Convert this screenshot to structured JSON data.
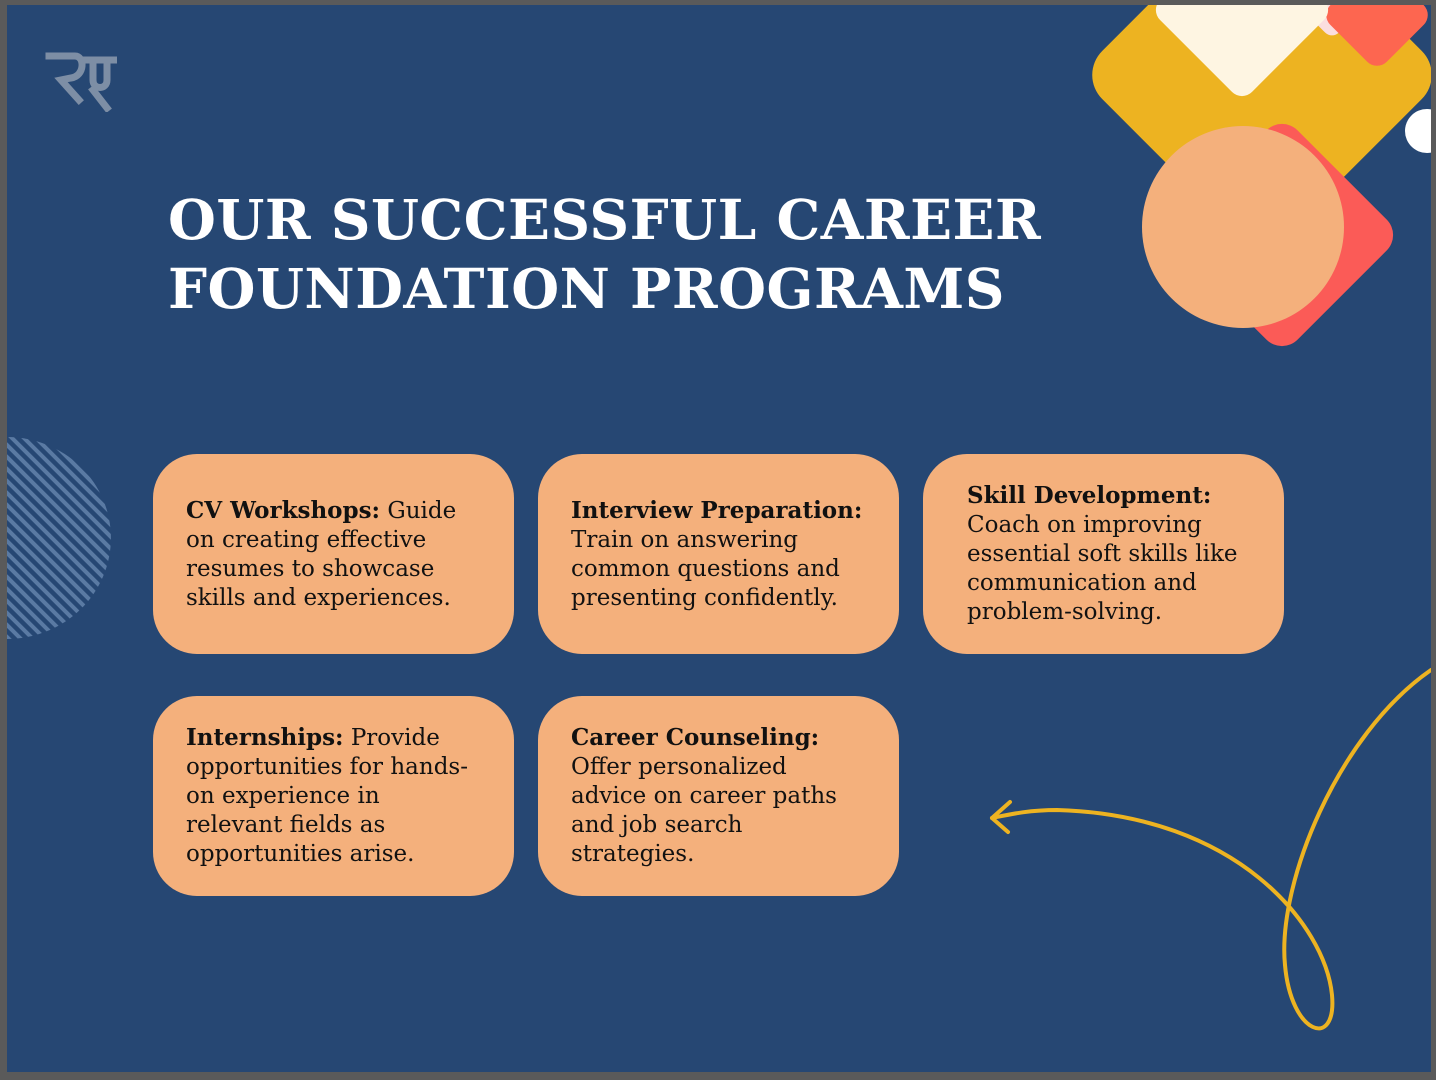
{
  "title": {
    "line1": "OUR SUCCESSFUL CAREER",
    "line2": "FOUNDATION PROGRAMS"
  },
  "cards": [
    {
      "heading": "CV Workshops:",
      "body": "Guide on creating effective resumes to showcase skills and experiences."
    },
    {
      "heading": "Interview Preparation:",
      "body": "Train on answering common questions and presenting confidently."
    },
    {
      "heading": "Skill Development:",
      "body": "Coach on improving essential soft skills like communication and problem-solving."
    },
    {
      "heading": "Internships:",
      "body": "Provide opportunities for hands-on experience in relevant fields as opportunities arise."
    },
    {
      "heading": "Career Counseling:",
      "body": "Offer personalized advice on career paths and job search strategies."
    }
  ],
  "colors": {
    "background": "#264773",
    "card": "#f4b07c",
    "yellow": "#edb321",
    "coral": "#fb5b57",
    "cream": "#fef5e2"
  },
  "icons": {
    "logo": "ry-monogram-logo",
    "arrow": "curved-arrow-icon"
  }
}
